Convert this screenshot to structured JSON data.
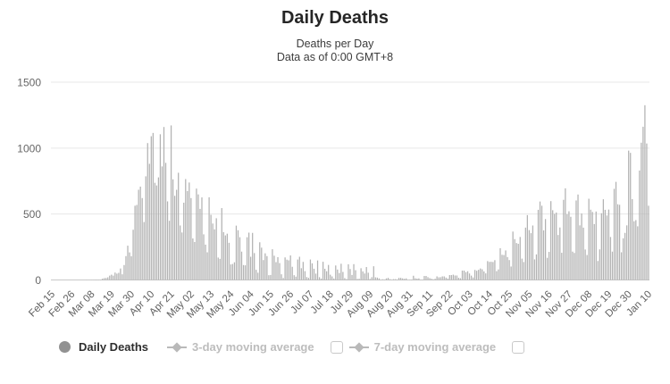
{
  "title": "Daily Deaths",
  "subtitle_line1": "Deaths per Day",
  "subtitle_line2": "Data as of 0:00 GMT+8",
  "legend": {
    "items": [
      {
        "label": "Daily Deaths",
        "marker": "circle-icon",
        "active": true,
        "has_checkbox": false
      },
      {
        "label": "3-day moving average",
        "marker": "line-diamond-icon",
        "active": false,
        "has_checkbox": true,
        "checked": false
      },
      {
        "label": "7-day moving average",
        "marker": "line-diamond-icon",
        "active": false,
        "has_checkbox": true,
        "checked": false
      }
    ]
  },
  "colors": {
    "bar": "#b2b2b2",
    "grid": "#e7e7e7",
    "axis_line": "#c9c9c9",
    "axis_text": "#666666",
    "x_axis_text": "#606060",
    "inactive_legend": "#bdbdbd",
    "active_legend_marker": "#929292"
  },
  "chart_data": {
    "type": "bar",
    "title": "Daily Deaths",
    "subtitle": "Deaths per Day — Data as of 0:00 GMT+8",
    "series_name": "Daily Deaths",
    "xlabel": "",
    "ylabel": "",
    "ylim": [
      0,
      1500
    ],
    "yticks": [
      0,
      500,
      1000,
      1500
    ],
    "grid": true,
    "legend_position": "bottom",
    "x_unit": "day",
    "x_start": "Feb 15",
    "x_end": "Jan 10",
    "tick_interval_days": 11,
    "tick_labels": [
      "Feb 15",
      "Feb 26",
      "Mar 08",
      "Mar 19",
      "Mar 30",
      "Apr 10",
      "Apr 21",
      "May 02",
      "May 13",
      "May 24",
      "Jun 04",
      "Jun 15",
      "Jun 26",
      "Jul 07",
      "Jul 18",
      "Jul 29",
      "Aug 09",
      "Aug 20",
      "Aug 31",
      "Sep 11",
      "Sep 22",
      "Oct 03",
      "Oct 14",
      "Oct 25",
      "Nov 05",
      "Nov 16",
      "Nov 27",
      "Dec 08",
      "Dec 19",
      "Dec 30",
      "Jan 10"
    ],
    "values": [
      0,
      0,
      0,
      0,
      0,
      0,
      0,
      0,
      0,
      0,
      0,
      0,
      0,
      0,
      0,
      0,
      0,
      0,
      0,
      1,
      1,
      0,
      1,
      1,
      2,
      2,
      2,
      2,
      10,
      14,
      15,
      20,
      33,
      40,
      33,
      56,
      48,
      54,
      87,
      43,
      113,
      181,
      260,
      209,
      180,
      381,
      563,
      569,
      684,
      708,
      621,
      439,
      786,
      1038,
      881,
      1090,
      1115,
      737,
      717,
      778,
      1105,
      861,
      1160,
      888,
      596,
      449,
      1172,
      763,
      638,
      684,
      813,
      413,
      360,
      586,
      765,
      674,
      739,
      621,
      315,
      288,
      693,
      649,
      539,
      626,
      346,
      268,
      210,
      627,
      494,
      428,
      384,
      468,
      170,
      160,
      545,
      363,
      338,
      351,
      282,
      118,
      121,
      134,
      412,
      377,
      324,
      215,
      113,
      111,
      324,
      359,
      176,
      357,
      204,
      77,
      55,
      286,
      245,
      151,
      202,
      181,
      36,
      38,
      233,
      184,
      135,
      173,
      128,
      43,
      15,
      171,
      154,
      149,
      186,
      100,
      36,
      25,
      155,
      176,
      89,
      137,
      67,
      22,
      16,
      155,
      126,
      85,
      48,
      148,
      21,
      11,
      138,
      85,
      66,
      114,
      40,
      27,
      11,
      110,
      79,
      53,
      123,
      61,
      14,
      7,
      119,
      83,
      38,
      120,
      74,
      8,
      9,
      89,
      65,
      49,
      98,
      55,
      8,
      21,
      104,
      20,
      18,
      12,
      3,
      5,
      3,
      12,
      16,
      6,
      2,
      6,
      6,
      4,
      16,
      16,
      12,
      9,
      12,
      1,
      2,
      3,
      32,
      13,
      10,
      12,
      3,
      3,
      30,
      30,
      21,
      14,
      9,
      5,
      9,
      27,
      20,
      21,
      27,
      27,
      18,
      11,
      37,
      37,
      40,
      34,
      34,
      17,
      13,
      71,
      71,
      59,
      66,
      49,
      33,
      19,
      76,
      70,
      77,
      87,
      81,
      65,
      50,
      143,
      137,
      138,
      136,
      150,
      67,
      80,
      241,
      191,
      189,
      224,
      174,
      151,
      102,
      367,
      310,
      280,
      274,
      326,
      162,
      136,
      397,
      492,
      378,
      355,
      413,
      156,
      194,
      532,
      595,
      563,
      376,
      462,
      168,
      213,
      598,
      529,
      501,
      511,
      341,
      398,
      206,
      608,
      695,
      498,
      521,
      479,
      215,
      205,
      603,
      648,
      414,
      504,
      397,
      231,
      189,
      616,
      533,
      516,
      424,
      519,
      144,
      232,
      506,
      612,
      532,
      489,
      534,
      326,
      215,
      691,
      744,
      574,
      570,
      210,
      316,
      357,
      414,
      981,
      964,
      613,
      445,
      454,
      407,
      830,
      1041,
      1162,
      1325,
      1035,
      563
    ]
  }
}
